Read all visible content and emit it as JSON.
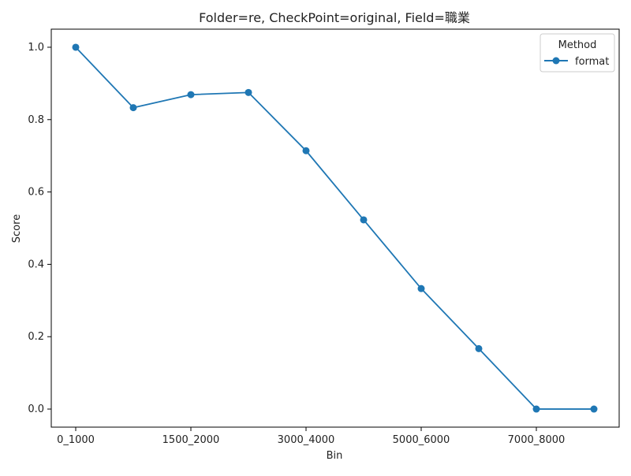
{
  "chart_data": {
    "type": "line",
    "title": "Folder=re, CheckPoint=original, Field=職業",
    "xlabel": "Bin",
    "ylabel": "Score",
    "categories": [
      "0_1000",
      "",
      "1500_2000",
      "",
      "3000_4000",
      "",
      "5000_6000",
      "",
      "7000_8000",
      ""
    ],
    "x_tick_labels": [
      "0_1000",
      "1500_2000",
      "3000_4000",
      "5000_6000",
      "7000_8000"
    ],
    "y_tick_labels": [
      "0.0",
      "0.2",
      "0.4",
      "0.6",
      "0.8",
      "1.0"
    ],
    "ylim": [
      -0.05,
      1.05
    ],
    "grid": false,
    "legend": {
      "title": "Method",
      "position": "top-right"
    },
    "series": [
      {
        "name": "format",
        "color": "#1f77b4",
        "marker": "circle",
        "values": [
          1.0,
          0.833,
          0.869,
          0.875,
          0.714,
          0.523,
          0.333,
          0.167,
          0.0,
          0.0
        ]
      }
    ]
  }
}
